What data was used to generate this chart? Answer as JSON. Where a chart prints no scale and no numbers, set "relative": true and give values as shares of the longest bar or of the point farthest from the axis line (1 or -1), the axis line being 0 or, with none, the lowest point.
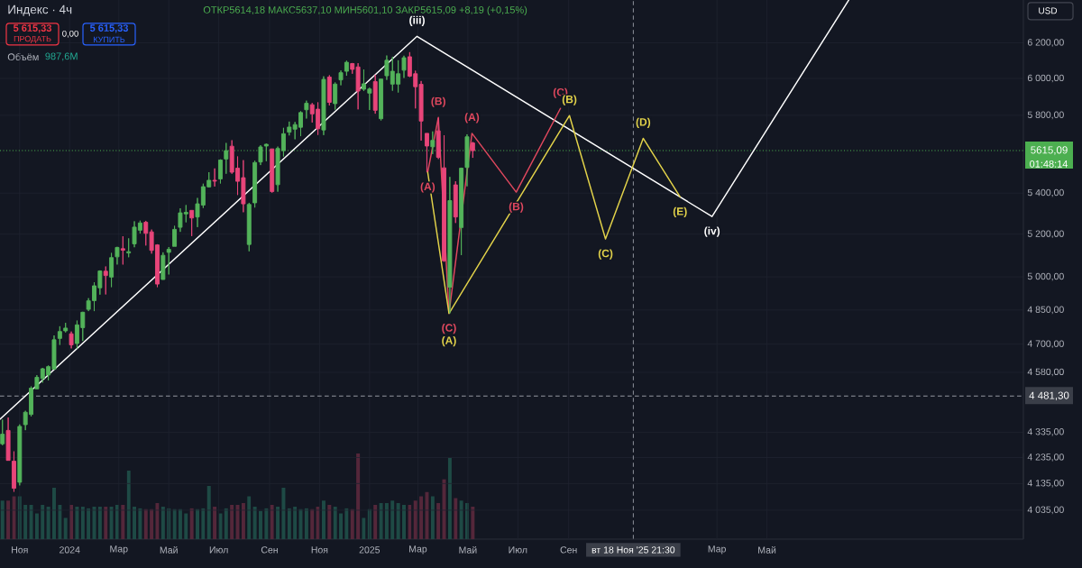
{
  "chart_data": [
    {
      "type": "candlestick",
      "title": "Индекс · 4ч",
      "subtitle": "ОТКР5614,18 МАКС5637,10 МИН5601,10 ЗАКР5615,09 +8,19 (+0,15%)",
      "x": [
        "2023-10-11",
        "2023-10-18",
        "2023-10-25",
        "2023-11-01",
        "2023-11-08",
        "2023-11-15",
        "2023-11-22",
        "2023-11-29",
        "2023-12-06",
        "2023-12-13",
        "2023-12-20",
        "2023-12-27",
        "2024-01-03",
        "2024-01-10",
        "2024-01-17",
        "2024-01-24",
        "2024-01-31",
        "2024-02-07",
        "2024-02-14",
        "2024-02-21",
        "2024-02-28",
        "2024-03-06",
        "2024-03-13",
        "2024-03-20",
        "2024-03-27",
        "2024-04-03",
        "2024-04-10",
        "2024-04-17",
        "2024-04-24",
        "2024-05-01",
        "2024-05-08",
        "2024-05-15",
        "2024-05-22",
        "2024-05-29",
        "2024-06-05",
        "2024-06-12",
        "2024-06-19",
        "2024-06-26",
        "2024-07-03",
        "2024-07-10",
        "2024-07-17",
        "2024-07-24",
        "2024-07-31",
        "2024-08-07",
        "2024-08-14",
        "2024-08-21",
        "2024-08-28",
        "2024-09-04",
        "2024-09-11",
        "2024-09-18",
        "2024-09-25",
        "2024-10-02",
        "2024-10-09",
        "2024-10-16",
        "2024-10-23",
        "2024-10-30",
        "2024-11-06",
        "2024-11-13",
        "2024-11-20",
        "2024-11-27",
        "2024-12-04",
        "2024-12-11",
        "2024-12-18",
        "2024-12-25",
        "2025-01-01",
        "2025-01-08",
        "2025-01-15",
        "2025-01-22",
        "2025-01-29",
        "2025-02-05",
        "2025-02-12",
        "2025-02-19",
        "2025-02-26",
        "2025-03-05",
        "2025-03-12",
        "2025-03-19",
        "2025-03-26",
        "2025-04-02",
        "2025-04-09",
        "2025-04-16",
        "2025-04-23",
        "2025-04-30",
        "2025-05-07"
      ],
      "ohlc": [
        [
          4289,
          4385,
          4283,
          4327
        ],
        [
          4342,
          4394,
          4223,
          4224
        ],
        [
          4221,
          4259,
          4104,
          4117
        ],
        [
          4140,
          4366,
          4128,
          4358
        ],
        [
          4365,
          4421,
          4343,
          4415
        ],
        [
          4406,
          4521,
          4398,
          4514
        ],
        [
          4511,
          4568,
          4510,
          4559
        ],
        [
          4554,
          4599,
          4537,
          4595
        ],
        [
          4569,
          4609,
          4546,
          4604
        ],
        [
          4593,
          4738,
          4593,
          4719
        ],
        [
          4725,
          4778,
          4697,
          4755
        ],
        [
          4758,
          4793,
          4751,
          4770
        ],
        [
          4745,
          4755,
          4682,
          4697
        ],
        [
          4703,
          4803,
          4682,
          4784
        ],
        [
          4772,
          4842,
          4714,
          4840
        ],
        [
          4853,
          4903,
          4845,
          4891
        ],
        [
          4892,
          4975,
          4845,
          4959
        ],
        [
          4950,
          5030,
          4919,
          5027
        ],
        [
          5026,
          5048,
          4920,
          5006
        ],
        [
          4999,
          5111,
          4953,
          5089
        ],
        [
          5093,
          5140,
          5057,
          5137
        ],
        [
          5131,
          5190,
          5057,
          5124
        ],
        [
          5111,
          5180,
          5091,
          5117
        ],
        [
          5154,
          5262,
          5138,
          5234
        ],
        [
          5219,
          5265,
          5203,
          5254
        ],
        [
          5257,
          5264,
          5146,
          5204
        ],
        [
          5211,
          5222,
          5108,
          5123
        ],
        [
          5149,
          5152,
          4953,
          4967
        ],
        [
          4988,
          5114,
          4987,
          5100
        ],
        [
          5114,
          5139,
          5011,
          5128
        ],
        [
          5142,
          5240,
          5142,
          5223
        ],
        [
          5233,
          5325,
          5211,
          5303
        ],
        [
          5298,
          5341,
          5257,
          5305
        ],
        [
          5315,
          5315,
          5191,
          5278
        ],
        [
          5283,
          5376,
          5234,
          5347
        ],
        [
          5341,
          5447,
          5327,
          5432
        ],
        [
          5431,
          5505,
          5428,
          5464
        ],
        [
          5464,
          5524,
          5433,
          5460
        ],
        [
          5471,
          5570,
          5448,
          5567
        ],
        [
          5572,
          5655,
          5497,
          5615
        ],
        [
          5638,
          5669,
          5497,
          5505
        ],
        [
          5525,
          5585,
          5391,
          5459
        ],
        [
          5477,
          5566,
          5306,
          5347
        ],
        [
          5151,
          5352,
          5119,
          5344
        ],
        [
          5352,
          5563,
          5329,
          5554
        ],
        [
          5557,
          5643,
          5541,
          5634
        ],
        [
          5639,
          5651,
          5561,
          5648
        ],
        [
          5624,
          5624,
          5402,
          5408
        ],
        [
          5442,
          5636,
          5407,
          5626
        ],
        [
          5615,
          5734,
          5585,
          5703
        ],
        [
          5711,
          5767,
          5694,
          5738
        ],
        [
          5727,
          5765,
          5674,
          5751
        ],
        [
          5737,
          5822,
          5690,
          5815
        ],
        [
          5830,
          5879,
          5783,
          5865
        ],
        [
          5857,
          5866,
          5762,
          5808
        ],
        [
          5833,
          5870,
          5697,
          5729
        ],
        [
          5723,
          6012,
          5696,
          5995
        ],
        [
          6008,
          6018,
          5853,
          5870
        ],
        [
          5863,
          5978,
          5831,
          5969
        ],
        [
          5992,
          6044,
          5963,
          6032
        ],
        [
          6040,
          6099,
          6015,
          6090
        ],
        [
          6083,
          6086,
          6026,
          6051
        ],
        [
          6064,
          6085,
          5832,
          5931
        ],
        [
          5941,
          6050,
          5931,
          5971
        ],
        [
          5920,
          5950,
          5829,
          5942
        ],
        [
          5983,
          6021,
          5809,
          5827
        ],
        [
          5782,
          5998,
          5773,
          5997
        ],
        [
          6015,
          6128,
          5992,
          6101
        ],
        [
          5969,
          6121,
          5933,
          6040
        ],
        [
          5969,
          6101,
          5923,
          6026
        ],
        [
          6046,
          6127,
          6003,
          6115
        ],
        [
          6121,
          6147,
          6008,
          6013
        ],
        [
          6026,
          6043,
          5837,
          5955
        ],
        [
          5968,
          5986,
          5667,
          5770
        ],
        [
          5705,
          5705,
          5505,
          5639
        ],
        [
          5635,
          5715,
          5597,
          5668
        ],
        [
          5718,
          5786,
          5572,
          5581
        ],
        [
          5527,
          5695,
          5070,
          5074
        ],
        [
          4953,
          5481,
          4835,
          5363
        ],
        [
          5441,
          5459,
          5254,
          5283
        ],
        [
          5232,
          5528,
          5101,
          5525
        ],
        [
          5529,
          5700,
          5434,
          5687
        ],
        [
          5655,
          5660,
          5578,
          5615
        ]
      ],
      "colors": [
        "#53b35a",
        "#e8457a",
        "#e8457a",
        "#53b35a",
        "#53b35a",
        "#53b35a",
        "#53b35a",
        "#53b35a",
        "#53b35a",
        "#53b35a",
        "#53b35a",
        "#53b35a",
        "#e8457a",
        "#53b35a",
        "#53b35a",
        "#53b35a",
        "#53b35a",
        "#53b35a",
        "#e8457a",
        "#53b35a",
        "#53b35a",
        "#e8457a",
        "#53b35a",
        "#53b35a",
        "#53b35a",
        "#e8457a",
        "#e8457a",
        "#e8457a",
        "#53b35a",
        "#53b35a",
        "#53b35a",
        "#53b35a",
        "#53b35a",
        "#e8457a",
        "#53b35a",
        "#53b35a",
        "#53b35a",
        "#e8457a",
        "#53b35a",
        "#53b35a",
        "#e8457a",
        "#e8457a",
        "#e8457a",
        "#53b35a",
        "#53b35a",
        "#53b35a",
        "#53b35a",
        "#e8457a",
        "#53b35a",
        "#53b35a",
        "#53b35a",
        "#53b35a",
        "#53b35a",
        "#53b35a",
        "#e8457a",
        "#e8457a",
        "#53b35a",
        "#e8457a",
        "#53b35a",
        "#53b35a",
        "#53b35a",
        "#e8457a",
        "#e8457a",
        "#53b35a",
        "#53b35a",
        "#e8457a",
        "#53b35a",
        "#53b35a",
        "#53b35a",
        "#53b35a",
        "#53b35a",
        "#e8457a",
        "#e8457a",
        "#e8457a",
        "#e8457a",
        "#53b35a",
        "#e8457a",
        "#e8457a",
        "#53b35a",
        "#e8457a",
        "#53b35a",
        "#53b35a",
        "#e8457a"
      ],
      "xlim": [
        "2023-10-08",
        "2027-03-10"
      ],
      "ylim": [
        3930,
        6450
      ],
      "log": "y",
      "grid": true,
      "xticks": [
        {
          "value": "2023-11-01",
          "label": "Ноя"
        },
        {
          "value": "2024-01-01",
          "label": "2024"
        },
        {
          "value": "2024-03-01",
          "label": "Мар"
        },
        {
          "value": "2024-05-01",
          "label": "Май"
        },
        {
          "value": "2024-07-01",
          "label": "Июл"
        },
        {
          "value": "2024-09-01",
          "label": "Сен"
        },
        {
          "value": "2024-11-01",
          "label": "Ноя"
        },
        {
          "value": "2025-01-01",
          "label": "2025"
        },
        {
          "value": "2025-03-01",
          "label": "Мар"
        },
        {
          "value": "2025-05-01",
          "label": "Май"
        },
        {
          "value": "2025-07-01",
          "label": "Июл"
        },
        {
          "value": "2025-09-01",
          "label": "Сен"
        },
        {
          "value": "2026-03-01",
          "label": "Мар"
        },
        {
          "value": "2026-05-01",
          "label": "Май"
        }
      ],
      "yticks": [
        {
          "value": 6200,
          "label": "6 200,00"
        },
        {
          "value": 6000,
          "label": "6 000,00"
        },
        {
          "value": 5800,
          "label": "5 800,00"
        },
        {
          "value": 5400,
          "label": "5 400,00"
        },
        {
          "value": 5200,
          "label": "5 200,00"
        },
        {
          "value": 5000,
          "label": "5 000,00"
        },
        {
          "value": 4850,
          "label": "4 850,00"
        },
        {
          "value": 4700,
          "label": "4 700,00"
        },
        {
          "value": 4580,
          "label": "4 580,00"
        },
        {
          "value": 4335,
          "label": "4 335,00"
        },
        {
          "value": 4235,
          "label": "4 235,00"
        },
        {
          "value": 4135,
          "label": "4 135,00"
        },
        {
          "value": 4035,
          "label": "4 035,00"
        }
      ],
      "series": [
        {
          "type": "line",
          "color": "#ffffff",
          "x": [
            "2023-10-08",
            "2025-02-28",
            "2026-02-23",
            "2026-08-09"
          ],
          "values": [
            4387,
            6237,
            5285,
            6450
          ],
          "value_labels": [
            null,
            "(iii)",
            "(iv)",
            null
          ]
        },
        {
          "type": "line",
          "color": "#e0485e",
          "x": [
            "2025-03-13",
            "2025-03-26",
            "2025-04-08",
            "2025-05-06",
            "2025-06-29",
            "2025-08-22"
          ],
          "values": [
            5505,
            5789,
            4835,
            5705,
            5405,
            5837
          ],
          "value_labels": [
            "(A)",
            "(B)",
            "(C)",
            "(A)",
            "(B)",
            "(C)"
          ]
        },
        {
          "type": "line",
          "color": "#e3d34a",
          "x": [
            "2025-03-13",
            "2025-04-08",
            "2025-09-02",
            "2025-10-16",
            "2025-12-01",
            "2026-01-15"
          ],
          "values": [
            5505,
            4835,
            5799,
            5177,
            5679,
            5381
          ],
          "value_labels": [
            null,
            "(A)",
            "(B)",
            "(C)",
            "(D)",
            "(E)"
          ]
        }
      ],
      "ref_lines": [
        {
          "axis": "y",
          "value": 5615.09,
          "label": "5615,09",
          "color": "#4caf50",
          "line_style": "dotted"
        },
        {
          "axis": "y",
          "value": 4481.3,
          "label": "4 481,30",
          "color": "#9598a1",
          "line_style": "dashed"
        },
        {
          "axis": "x",
          "value": "2025-11-18T21:30",
          "label": "вт 18 Ноя '25 21:30",
          "color": "#9598a1",
          "line_style": "dashed"
        }
      ],
      "annotations": [
        "5 615,33",
        "ПРОДАТЬ",
        "0,00",
        "5 615,33",
        "КУПИТЬ",
        "USD",
        "01:48:14"
      ]
    },
    {
      "type": "bar",
      "title": "Объём",
      "relative": true,
      "xlim": [
        "2023-10-08",
        "2027-03-10"
      ],
      "x": [
        "2023-10-11",
        "2023-10-18",
        "2023-10-25",
        "2023-11-01",
        "2023-11-08",
        "2023-11-15",
        "2023-11-22",
        "2023-11-29",
        "2023-12-06",
        "2023-12-13",
        "2023-12-20",
        "2023-12-27",
        "2024-01-03",
        "2024-01-10",
        "2024-01-17",
        "2024-01-24",
        "2024-01-31",
        "2024-02-07",
        "2024-02-14",
        "2024-02-21",
        "2024-02-28",
        "2024-03-06",
        "2024-03-13",
        "2024-03-20",
        "2024-03-27",
        "2024-04-03",
        "2024-04-10",
        "2024-04-17",
        "2024-04-24",
        "2024-05-01",
        "2024-05-08",
        "2024-05-15",
        "2024-05-22",
        "2024-05-29",
        "2024-06-05",
        "2024-06-12",
        "2024-06-19",
        "2024-06-26",
        "2024-07-03",
        "2024-07-10",
        "2024-07-17",
        "2024-07-24",
        "2024-07-31",
        "2024-08-07",
        "2024-08-14",
        "2024-08-21",
        "2024-08-28",
        "2024-09-04",
        "2024-09-11",
        "2024-09-18",
        "2024-09-25",
        "2024-10-02",
        "2024-10-09",
        "2024-10-16",
        "2024-10-23",
        "2024-10-30",
        "2024-11-06",
        "2024-11-13",
        "2024-11-20",
        "2024-11-27",
        "2024-12-04",
        "2024-12-11",
        "2024-12-18",
        "2024-12-25",
        "2025-01-01",
        "2025-01-08",
        "2025-01-15",
        "2025-01-22",
        "2025-01-29",
        "2025-02-05",
        "2025-02-12",
        "2025-02-19",
        "2025-02-26",
        "2025-03-05",
        "2025-03-12",
        "2025-03-19",
        "2025-03-26",
        "2025-04-02",
        "2025-04-09",
        "2025-04-16",
        "2025-04-23",
        "2025-04-30",
        "2025-05-07"
      ],
      "values": [
        0.45,
        0.45,
        0.5,
        0.5,
        0.4,
        0.4,
        0.3,
        0.4,
        0.38,
        0.6,
        0.4,
        0.25,
        0.4,
        0.38,
        0.38,
        0.36,
        0.38,
        0.38,
        0.38,
        0.38,
        0.4,
        0.4,
        0.8,
        0.38,
        0.36,
        0.35,
        0.35,
        0.42,
        0.38,
        0.36,
        0.35,
        0.35,
        0.3,
        0.36,
        0.35,
        0.36,
        0.62,
        0.38,
        0.3,
        0.36,
        0.4,
        0.4,
        0.42,
        0.5,
        0.38,
        0.33,
        0.36,
        0.4,
        0.38,
        0.6,
        0.36,
        0.38,
        0.35,
        0.36,
        0.35,
        0.38,
        0.45,
        0.4,
        0.38,
        0.3,
        0.36,
        0.35,
        1.0,
        0.25,
        0.35,
        0.4,
        0.42,
        0.42,
        0.45,
        0.42,
        0.4,
        0.4,
        0.45,
        0.5,
        0.55,
        0.5,
        0.42,
        0.7,
        0.95,
        0.48,
        0.45,
        0.42,
        0.38
      ],
      "colors": [
        "#1e4a45",
        "#54273a",
        "#54273a",
        "#1e4a45",
        "#1e4a45",
        "#1e4a45",
        "#1e4a45",
        "#1e4a45",
        "#1e4a45",
        "#1e4a45",
        "#1e4a45",
        "#1e4a45",
        "#54273a",
        "#1e4a45",
        "#1e4a45",
        "#1e4a45",
        "#1e4a45",
        "#1e4a45",
        "#54273a",
        "#1e4a45",
        "#1e4a45",
        "#54273a",
        "#1e4a45",
        "#1e4a45",
        "#1e4a45",
        "#54273a",
        "#54273a",
        "#54273a",
        "#1e4a45",
        "#1e4a45",
        "#1e4a45",
        "#1e4a45",
        "#1e4a45",
        "#54273a",
        "#1e4a45",
        "#1e4a45",
        "#1e4a45",
        "#54273a",
        "#1e4a45",
        "#1e4a45",
        "#54273a",
        "#54273a",
        "#54273a",
        "#1e4a45",
        "#1e4a45",
        "#1e4a45",
        "#1e4a45",
        "#54273a",
        "#1e4a45",
        "#1e4a45",
        "#1e4a45",
        "#1e4a45",
        "#1e4a45",
        "#1e4a45",
        "#54273a",
        "#54273a",
        "#1e4a45",
        "#54273a",
        "#1e4a45",
        "#1e4a45",
        "#1e4a45",
        "#54273a",
        "#54273a",
        "#1e4a45",
        "#1e4a45",
        "#54273a",
        "#1e4a45",
        "#1e4a45",
        "#1e4a45",
        "#1e4a45",
        "#1e4a45",
        "#54273a",
        "#54273a",
        "#54273a",
        "#54273a",
        "#1e4a45",
        "#54273a",
        "#54273a",
        "#1e4a45",
        "#54273a",
        "#1e4a45",
        "#1e4a45",
        "#54273a"
      ],
      "annotations": [
        "987,6M"
      ]
    }
  ]
}
